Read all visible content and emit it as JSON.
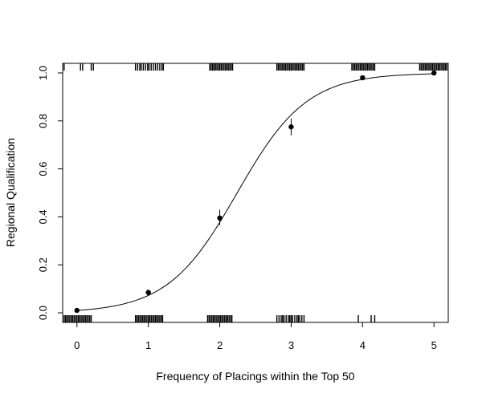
{
  "chart_data": {
    "type": "scatter",
    "title": "",
    "xlabel": "Frequency of Placings within the Top 50",
    "ylabel": "Regional Qualification",
    "xlim": [
      -0.2,
      5.2
    ],
    "ylim": [
      -0.04,
      1.04
    ],
    "xticks": [
      0,
      1,
      2,
      3,
      4,
      5
    ],
    "yticks": [
      0.0,
      0.2,
      0.4,
      0.6,
      0.8,
      1.0
    ],
    "xtick_labels": [
      "0",
      "1",
      "2",
      "3",
      "4",
      "5"
    ],
    "ytick_labels": [
      "0.0",
      "0.2",
      "0.4",
      "0.6",
      "0.8",
      "1.0"
    ],
    "points": [
      {
        "x": 0,
        "y": 0.01,
        "lo": 0.003,
        "hi": 0.017
      },
      {
        "x": 1,
        "y": 0.085,
        "lo": 0.075,
        "hi": 0.095
      },
      {
        "x": 2,
        "y": 0.395,
        "lo": 0.365,
        "hi": 0.43
      },
      {
        "x": 3,
        "y": 0.775,
        "lo": 0.74,
        "hi": 0.81
      },
      {
        "x": 4,
        "y": 0.98,
        "lo": 0.97,
        "hi": 0.99
      },
      {
        "x": 5,
        "y": 1.0,
        "lo": 0.997,
        "hi": 1.0
      }
    ],
    "fit": {
      "type": "logistic",
      "intercept": -4.6,
      "slope": 2.05
    },
    "rug_top_x": [
      -0.18,
      0.05,
      0.08,
      0.2,
      0.23,
      0.82,
      0.85,
      0.88,
      0.9,
      0.93,
      0.96,
      0.99,
      1.01,
      1.04,
      1.07,
      1.1,
      1.13,
      1.16,
      1.19,
      1.21,
      1.86,
      1.88,
      1.9,
      1.92,
      1.94,
      1.96,
      1.98,
      2.0,
      2.02,
      2.04,
      2.06,
      2.08,
      2.1,
      2.12,
      2.14,
      2.16,
      2.18,
      2.8,
      2.82,
      2.84,
      2.86,
      2.88,
      2.9,
      2.92,
      2.94,
      2.96,
      2.98,
      3.0,
      3.02,
      3.04,
      3.06,
      3.08,
      3.1,
      3.12,
      3.14,
      3.16,
      3.18,
      3.85,
      3.87,
      3.89,
      3.91,
      3.93,
      3.95,
      3.97,
      3.99,
      4.01,
      4.03,
      4.05,
      4.07,
      4.09,
      4.11,
      4.13,
      4.15,
      4.17,
      4.8,
      4.82,
      4.84,
      4.86,
      4.88,
      4.9,
      4.92,
      4.94,
      4.96,
      4.98,
      5.0,
      5.02,
      5.04,
      5.06,
      5.08,
      5.1,
      5.12,
      5.14,
      5.16,
      5.18
    ],
    "rug_bottom_x": [
      -0.18,
      -0.16,
      -0.14,
      -0.12,
      -0.1,
      -0.08,
      -0.06,
      -0.04,
      -0.02,
      0.0,
      0.02,
      0.04,
      0.06,
      0.08,
      0.1,
      0.12,
      0.14,
      0.16,
      0.18,
      0.2,
      0.82,
      0.84,
      0.86,
      0.88,
      0.9,
      0.92,
      0.94,
      0.96,
      0.98,
      1.0,
      1.02,
      1.04,
      1.06,
      1.08,
      1.1,
      1.12,
      1.14,
      1.16,
      1.18,
      1.2,
      1.83,
      1.85,
      1.87,
      1.89,
      1.91,
      1.93,
      1.95,
      1.97,
      1.99,
      2.01,
      2.03,
      2.05,
      2.07,
      2.09,
      2.11,
      2.13,
      2.15,
      2.17,
      2.8,
      2.83,
      2.86,
      2.88,
      2.9,
      2.93,
      2.96,
      2.98,
      3.0,
      3.02,
      3.05,
      3.08,
      3.1,
      3.12,
      3.15,
      3.18,
      3.94,
      4.12,
      4.17
    ]
  }
}
